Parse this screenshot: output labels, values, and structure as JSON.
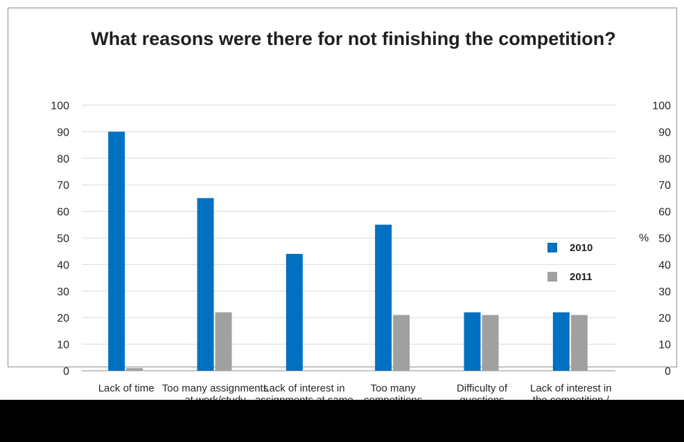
{
  "chart_data": {
    "type": "bar",
    "title": "What reasons were there for not finishing the competition?",
    "ylabel": "%",
    "ylim": [
      0,
      100
    ],
    "yticks": [
      0,
      10,
      20,
      30,
      40,
      50,
      60,
      70,
      80,
      90,
      100
    ],
    "categories": [
      "Lack of time",
      "Too many assignments at work/study",
      "Lack of interest in assignments at same time",
      "Too many competitions",
      "Difficulty of questions",
      "Lack of interest in the competition / others too good"
    ],
    "series": [
      {
        "name": "2010",
        "color": "#0070c0",
        "values": [
          90,
          65,
          44,
          55,
          22,
          22
        ]
      },
      {
        "name": "2011",
        "color": "#a0a0a0",
        "values": [
          1,
          22,
          0,
          21,
          21,
          21
        ]
      }
    ],
    "legend_position": "right",
    "grid": true,
    "axis_side": "right"
  }
}
